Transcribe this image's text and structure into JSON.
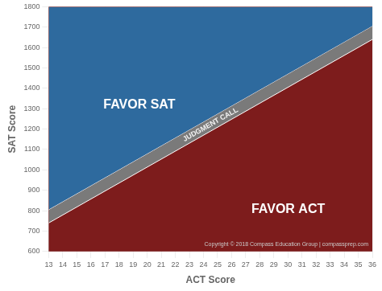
{
  "chart_data": {
    "type": "area",
    "x": [
      13,
      36
    ],
    "series": [
      {
        "color": "#7A7A7A",
        "values": [
          739.69,
          1639.68
        ]
      },
      {
        "color": "#2E6A9E",
        "values": [
          803.69,
          1703.68
        ]
      }
    ],
    "color": "#7D1C1C",
    "x_label": "ACT Score",
    "y_label": "SAT Score",
    "annotations": [
      "FAVOR SAT",
      "FAVOR ACT",
      "JUDGMENT CALL",
      "Copyright © 2018 Compass Education Group | compassprep.com"
    ],
    "xlim": [
      13,
      36
    ],
    "xticks": [
      13,
      14,
      15,
      16,
      17,
      18,
      19,
      20,
      21,
      22,
      23,
      24,
      25,
      26,
      27,
      28,
      29,
      30,
      31,
      32,
      33,
      34,
      35,
      36
    ],
    "ylim": [
      600,
      1800
    ],
    "yticks": [
      600,
      700,
      800,
      900,
      1000,
      1100,
      1200,
      1300,
      1400,
      1500,
      1600,
      1700,
      1800
    ],
    "grid": true
  }
}
